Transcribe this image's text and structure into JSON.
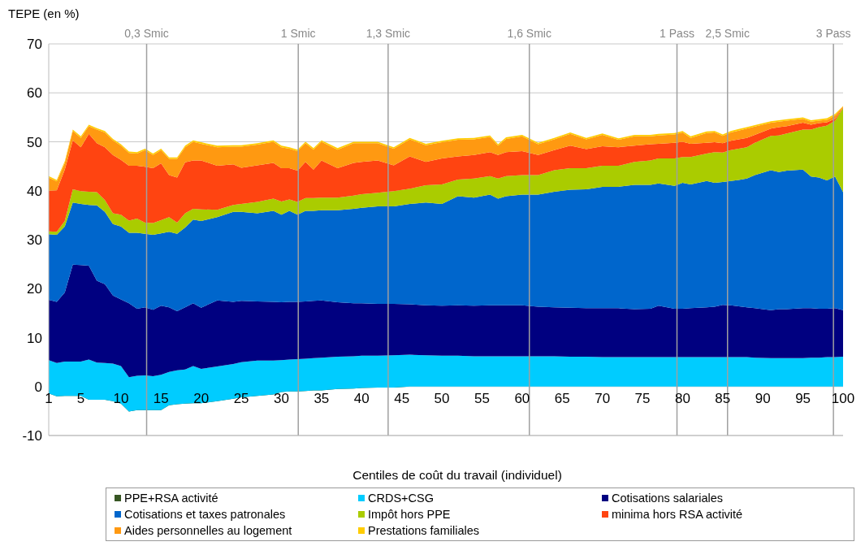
{
  "chart_data": {
    "type": "area",
    "stacked": true,
    "ylabel": "TEPE (en %)",
    "xlabel": "Centiles de coût du travail (individuel)",
    "grid": "y",
    "legend": "bottom",
    "xlim": [
      1,
      100
    ],
    "xticks": [
      1,
      5,
      10,
      15,
      20,
      25,
      30,
      35,
      40,
      45,
      50,
      55,
      60,
      65,
      70,
      75,
      80,
      85,
      90,
      95,
      100
    ],
    "ylim": [
      -10,
      70
    ],
    "yticks": [
      -10,
      0,
      10,
      20,
      30,
      40,
      50,
      60,
      70
    ],
    "x": [
      1,
      2,
      3,
      4,
      5,
      6,
      7,
      8,
      9,
      10,
      11,
      12,
      13,
      14,
      15,
      16,
      17,
      18,
      19,
      20,
      22,
      24,
      25,
      27,
      29,
      30,
      31,
      32,
      33,
      34,
      35,
      37,
      39,
      40,
      42,
      44,
      46,
      48,
      50,
      52,
      54,
      56,
      57,
      58,
      60,
      62,
      64,
      66,
      68,
      70,
      72,
      74,
      76,
      77,
      79,
      80,
      81,
      83,
      84,
      85,
      86,
      87,
      88,
      89,
      91,
      92,
      93,
      95,
      96,
      97,
      98,
      99,
      100
    ],
    "series": [
      {
        "name": "PPE+RSA activité",
        "color": "#375623",
        "values": [
          -1.4,
          -2.0,
          -1.9,
          -1.9,
          -1.9,
          -2.7,
          -2.7,
          -2.7,
          -3.0,
          -3.5,
          -5.1,
          -4.8,
          -4.8,
          -4.8,
          -4.8,
          -3.8,
          -3.6,
          -3.5,
          -3.4,
          -3.4,
          -3.0,
          -2.5,
          -2.2,
          -1.9,
          -1.6,
          -1.1,
          -1.0,
          -1.0,
          -0.9,
          -0.8,
          -0.8,
          -0.5,
          -0.4,
          -0.3,
          -0.2,
          -0.2,
          0,
          0,
          0,
          0,
          0,
          0,
          0,
          0,
          0,
          0,
          0,
          0,
          0,
          0,
          0,
          0,
          0,
          0,
          0,
          0,
          0,
          0,
          0,
          0,
          0,
          0,
          0,
          0,
          0,
          0,
          0,
          0,
          0,
          0,
          0,
          0,
          0
        ]
      },
      {
        "name": "CRDS+CSG",
        "color": "#00ccff",
        "values": [
          6.8,
          6.8,
          7.0,
          7.0,
          7.0,
          8.2,
          7.6,
          7.5,
          7.7,
          7.7,
          7.0,
          7.0,
          7.1,
          6.9,
          7.2,
          6.8,
          6.9,
          7.0,
          7.6,
          7.0,
          7.1,
          7.1,
          7.2,
          7.2,
          6.9,
          6.5,
          6.5,
          6.6,
          6.6,
          6.6,
          6.7,
          6.6,
          6.6,
          6.6,
          6.5,
          6.6,
          6.5,
          6.4,
          6.3,
          6.3,
          6.2,
          6.2,
          6.2,
          6.2,
          6.2,
          6.2,
          6.2,
          6.1,
          6.1,
          6.0,
          6.0,
          6.0,
          6.0,
          6.0,
          6.0,
          6.0,
          6.0,
          6.0,
          6.0,
          6.0,
          6.0,
          6.0,
          6.0,
          5.9,
          5.8,
          5.8,
          5.8,
          5.8,
          5.9,
          5.9,
          6.0,
          6.0,
          6.1
        ]
      },
      {
        "name": "Cotisations salariales",
        "color": "#000080",
        "values": [
          12.3,
          12.5,
          14.1,
          19.8,
          19.7,
          19.2,
          16.7,
          16.1,
          13.9,
          13.6,
          15.1,
          13.7,
          13.9,
          13.6,
          14.1,
          13.2,
          12.1,
          12.7,
          12.8,
          12.5,
          13.5,
          12.7,
          12.5,
          12.1,
          12.0,
          11.8,
          11.8,
          11.7,
          11.7,
          11.7,
          11.7,
          11.1,
          10.8,
          10.7,
          10.6,
          10.5,
          10.3,
          10.2,
          10.2,
          10.3,
          10.3,
          10.4,
          10.4,
          10.4,
          10.4,
          10.1,
          10.0,
          10.0,
          9.9,
          10.0,
          10.0,
          9.8,
          9.9,
          10.5,
          9.9,
          9.9,
          10.0,
          10.2,
          10.3,
          10.7,
          10.6,
          10.4,
          10.2,
          10.1,
          9.8,
          10.0,
          10.0,
          10.2,
          10.1,
          10.0,
          9.9,
          10.0,
          9.5
        ]
      },
      {
        "name": "Cotisations et taxes patronales",
        "color": "#0066cc",
        "values": [
          13.4,
          13.7,
          13.5,
          12.7,
          12.5,
          12.4,
          15.4,
          14.8,
          14.6,
          14.9,
          14.4,
          15.5,
          15.0,
          15.3,
          14.8,
          15.4,
          15.8,
          16.3,
          17.1,
          17.7,
          17.0,
          18.4,
          18.2,
          18.0,
          18.6,
          17.9,
          18.6,
          17.8,
          18.5,
          18.4,
          18.4,
          18.8,
          19.3,
          19.5,
          19.9,
          19.9,
          20.5,
          21.0,
          20.8,
          22.3,
          22.1,
          22.6,
          21.8,
          22.3,
          22.6,
          22.9,
          23.6,
          24.1,
          24.3,
          24.8,
          24.8,
          25.4,
          25.3,
          25.0,
          25.1,
          25.7,
          25.3,
          25.8,
          25.3,
          25.1,
          25.4,
          25.8,
          26.3,
          27.2,
          28.6,
          28.0,
          28.3,
          28.3,
          26.9,
          26.8,
          26.2,
          26.9,
          24.1
        ]
      },
      {
        "name": "Impôt hors PPE",
        "color": "#aacc00",
        "values": [
          0.6,
          0.6,
          1.1,
          2.7,
          2.6,
          2.7,
          2.7,
          2.4,
          2.2,
          2.4,
          2.5,
          2.9,
          2.3,
          2.4,
          2.7,
          3.0,
          2.3,
          2.9,
          2.2,
          2.4,
          1.5,
          1.4,
          1.6,
          2.3,
          2.5,
          2.7,
          2.3,
          2.6,
          2.6,
          2.6,
          2.6,
          2.6,
          2.7,
          2.8,
          2.8,
          3.1,
          3.1,
          3.5,
          4.0,
          3.4,
          3.9,
          3.8,
          4.1,
          4.1,
          4.0,
          4.0,
          4.4,
          4.4,
          4.3,
          4.3,
          4.3,
          4.7,
          5.0,
          5.1,
          5.6,
          5.3,
          5.6,
          5.6,
          6.3,
          6.0,
          6.3,
          6.4,
          6.4,
          6.6,
          7.0,
          7.5,
          7.6,
          8.2,
          9.6,
          10.3,
          11.2,
          11.4,
          17.2
        ]
      },
      {
        "name": "minima hors RSA activité",
        "color": "#ff4411",
        "values": [
          8.3,
          8.5,
          10.5,
          10.0,
          9.0,
          11.8,
          10.0,
          10.8,
          11.9,
          11.2,
          11.2,
          10.8,
          11.4,
          11.2,
          11.6,
          8.6,
          9.2,
          10.4,
          9.9,
          10.0,
          9.0,
          8.3,
          7.4,
          7.5,
          7.3,
          6.8,
          6.4,
          6.4,
          7.4,
          5.8,
          7.6,
          6.0,
          6.7,
          6.6,
          6.6,
          5.3,
          6.6,
          4.8,
          5.3,
          4.7,
          4.8,
          4.9,
          4.8,
          4.9,
          4.9,
          4.1,
          4.1,
          4.6,
          3.9,
          4.0,
          3.8,
          3.3,
          3.3,
          3.0,
          3.2,
          3.1,
          2.7,
          2.2,
          2.0,
          1.9,
          1.9,
          1.9,
          1.9,
          1.6,
          1.5,
          1.7,
          1.5,
          1.4,
          1.0,
          0.8,
          0.7,
          0.4,
          0.1
        ]
      },
      {
        "name": "Aides personnelles au logement",
        "color": "#ff9911",
        "values": [
          2.7,
          1.8,
          1.4,
          1.9,
          1.9,
          1.6,
          2.8,
          3.0,
          3.0,
          2.9,
          2.6,
          2.5,
          3.4,
          2.7,
          2.7,
          3.3,
          3.8,
          3.1,
          3.8,
          3.4,
          3.8,
          3.6,
          4.3,
          4.2,
          4.3,
          4.3,
          4.0,
          4.0,
          3.8,
          4.1,
          3.8,
          3.8,
          4.0,
          3.8,
          3.5,
          3.4,
          3.5,
          3.4,
          3.3,
          3.4,
          3.2,
          3.1,
          1.9,
          2.7,
          3.0,
          2.2,
          2.2,
          2.4,
          2.0,
          2.3,
          1.5,
          1.9,
          1.6,
          1.7,
          1.7,
          1.9,
          1.2,
          2.0,
          2.0,
          1.5,
          1.7,
          1.8,
          1.9,
          1.7,
          1.2,
          1.1,
          1.1,
          0.8,
          0.6,
          0.5,
          0.5,
          0.7,
          0.2
        ]
      },
      {
        "name": "Prestations familiales",
        "color": "#ffcc00",
        "values": [
          0.3,
          0.3,
          0.3,
          0.3,
          0.3,
          0.3,
          0.3,
          0.3,
          0.3,
          0.3,
          0.3,
          0.3,
          0.3,
          0.3,
          0.3,
          0.3,
          0.3,
          0.3,
          0.3,
          0.3,
          0.3,
          0.3,
          0.3,
          0.3,
          0.3,
          0.3,
          0.3,
          0.3,
          0.3,
          0.3,
          0.3,
          0.3,
          0.3,
          0.3,
          0.3,
          0.3,
          0.3,
          0.3,
          0.3,
          0.3,
          0.3,
          0.3,
          0.3,
          0.3,
          0.3,
          0.3,
          0.3,
          0.3,
          0.3,
          0.3,
          0.3,
          0.3,
          0.3,
          0.3,
          0.3,
          0.3,
          0.3,
          0.3,
          0.3,
          0.3,
          0.3,
          0.3,
          0.3,
          0.3,
          0.3,
          0.3,
          0.3,
          0.3,
          0.3,
          0.3,
          0.3,
          0.3,
          0.1
        ]
      }
    ],
    "ref_lines": [
      {
        "axis": "x",
        "value": 13.2,
        "label": "0,3 Smic",
        "color": "#a0a0a0"
      },
      {
        "axis": "x",
        "value": 32.1,
        "label": "1 Smic",
        "color": "#a0a0a0"
      },
      {
        "axis": "x",
        "value": 43.3,
        "label": "1,3 Smic",
        "color": "#a0a0a0"
      },
      {
        "axis": "x",
        "value": 60.9,
        "label": "1,6 Smic",
        "color": "#a0a0a0"
      },
      {
        "axis": "x",
        "value": 79.3,
        "label": "1 Pass",
        "color": "#a0a0a0"
      },
      {
        "axis": "x",
        "value": 85.6,
        "label": "2,5 Smic",
        "color": "#a0a0a0"
      },
      {
        "axis": "x",
        "value": 98.8,
        "label": "3 Pass",
        "color": "#a0a0a0"
      }
    ]
  }
}
